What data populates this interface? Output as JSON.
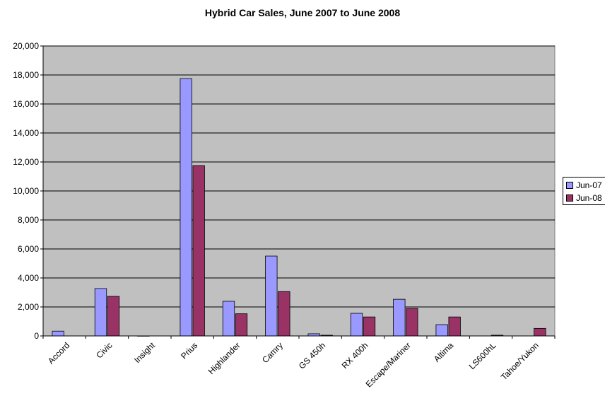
{
  "title": "Hybrid Car Sales, June 2007 to June 2008",
  "colors": {
    "plot_bg": "#c0c0c0",
    "series_1": "#9999ff",
    "series_2": "#993366",
    "gridline": "#000000"
  },
  "chart_data": {
    "type": "bar",
    "title": "Hybrid Car Sales, June 2007 to June 2008",
    "xlabel": "",
    "ylabel": "",
    "ylim": [
      0,
      20000
    ],
    "yticks": [
      "0",
      "2,000",
      "4,000",
      "6,000",
      "8,000",
      "10,000",
      "12,000",
      "14,000",
      "16,000",
      "18,000",
      "20,000"
    ],
    "grid": true,
    "legend": "right",
    "categories": [
      "Accord",
      "Civic",
      "Insight",
      "Prius",
      "Highlander",
      "Camry",
      "GS 450h",
      "RX 400h",
      "Escape/Mariner",
      "Altima",
      "LS600hL",
      "Tahoe/Yukon"
    ],
    "series": [
      {
        "name": "Jun-07",
        "values": [
          330,
          3270,
          5,
          17750,
          2390,
          5510,
          150,
          1560,
          2530,
          780,
          0,
          0
        ]
      },
      {
        "name": "Jun-08",
        "values": [
          0,
          2730,
          0,
          11750,
          1530,
          3060,
          50,
          1310,
          1900,
          1310,
          50,
          520
        ]
      }
    ]
  }
}
